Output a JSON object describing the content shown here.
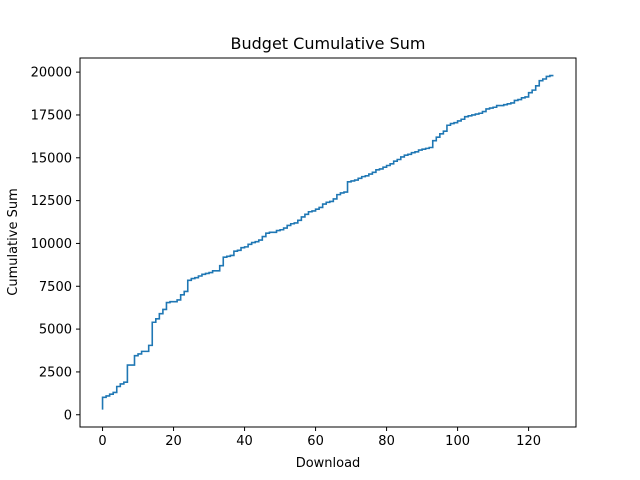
{
  "chart_data": {
    "type": "line",
    "drawstyle": "steps",
    "title": "Budget Cumulative Sum",
    "xlabel": "Download",
    "ylabel": "Cumulative Sum",
    "xlim": [
      -6.35,
      133.35
    ],
    "ylim": [
      -715,
      20825
    ],
    "xticks": [
      0,
      20,
      40,
      60,
      80,
      100,
      120
    ],
    "yticks": [
      0,
      2500,
      5000,
      7500,
      10000,
      12500,
      15000,
      17500,
      20000
    ],
    "grid": false,
    "line_color": "#1f77b4",
    "series": [
      {
        "name": "",
        "x": [
          0,
          1,
          2,
          3,
          4,
          5,
          6,
          7,
          8,
          9,
          10,
          11,
          12,
          13,
          14,
          15,
          16,
          17,
          18,
          19,
          20,
          21,
          22,
          23,
          24,
          25,
          26,
          27,
          28,
          29,
          30,
          31,
          32,
          33,
          34,
          35,
          36,
          37,
          38,
          39,
          40,
          41,
          42,
          43,
          44,
          45,
          46,
          47,
          48,
          49,
          50,
          51,
          52,
          53,
          54,
          55,
          56,
          57,
          58,
          59,
          60,
          61,
          62,
          63,
          64,
          65,
          66,
          67,
          68,
          69,
          70,
          71,
          72,
          73,
          74,
          75,
          76,
          77,
          78,
          79,
          80,
          81,
          82,
          83,
          84,
          85,
          86,
          87,
          88,
          89,
          90,
          91,
          92,
          93,
          94,
          95,
          96,
          97,
          98,
          99,
          100,
          101,
          102,
          103,
          104,
          105,
          106,
          107,
          108,
          109,
          110,
          111,
          112,
          113,
          114,
          115,
          116,
          117,
          118,
          119,
          120,
          121,
          122,
          123,
          124,
          125,
          126,
          127
        ],
        "values": [
          300,
          1020,
          1100,
          1200,
          1300,
          1650,
          1800,
          1900,
          2900,
          2900,
          3450,
          3550,
          3700,
          3700,
          4050,
          5400,
          5600,
          5900,
          6150,
          6550,
          6600,
          6600,
          6700,
          7000,
          7200,
          7850,
          7950,
          8000,
          8100,
          8200,
          8250,
          8300,
          8400,
          8400,
          8700,
          9200,
          9250,
          9300,
          9550,
          9600,
          9750,
          9800,
          9950,
          10050,
          10100,
          10200,
          10400,
          10600,
          10650,
          10650,
          10750,
          10800,
          10900,
          11050,
          11150,
          11200,
          11350,
          11550,
          11700,
          11850,
          11900,
          12000,
          12100,
          12300,
          12400,
          12450,
          12600,
          12850,
          12950,
          13000,
          13600,
          13650,
          13700,
          13800,
          13900,
          13950,
          14050,
          14150,
          14300,
          14350,
          14450,
          14550,
          14650,
          14800,
          14900,
          15050,
          15150,
          15200,
          15300,
          15350,
          15450,
          15500,
          15550,
          15600,
          16000,
          16200,
          16400,
          16550,
          16900,
          17000,
          17050,
          17150,
          17250,
          17400,
          17450,
          17500,
          17550,
          17600,
          17700,
          17850,
          17900,
          17950,
          18050,
          18050,
          18100,
          18150,
          18200,
          18350,
          18400,
          18500,
          18550,
          18800,
          18950,
          19200,
          19500,
          19600,
          19750,
          19800
        ]
      }
    ]
  }
}
